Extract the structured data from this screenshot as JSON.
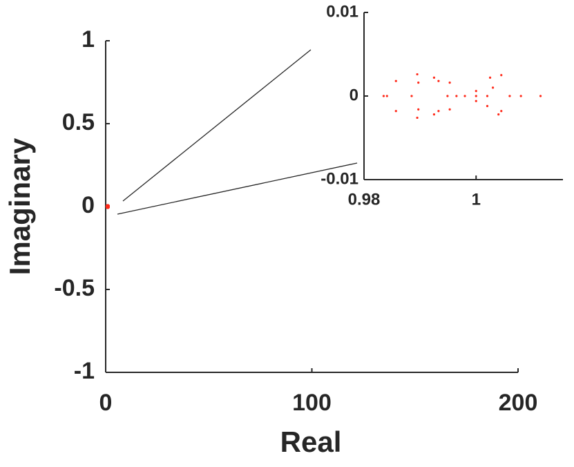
{
  "chart_data": [
    {
      "type": "scatter",
      "x_label": "Real",
      "y_label": "Imaginary",
      "xlim": [
        0,
        200
      ],
      "ylim": [
        -1,
        1
      ],
      "xticks": [
        0,
        100,
        200
      ],
      "yticks": [
        -1,
        -0.5,
        0,
        0.5,
        1
      ],
      "series": [
        {
          "color": "#ff2a1a",
          "x": [
            0.9949,
            0.9933,
            0.9895,
            0.9857,
            0.9841,
            0.9857,
            0.9895,
            0.9933,
            0.9965,
            0.9953,
            0.9925,
            0.9897,
            0.9885,
            0.9897,
            0.9925,
            0.9953,
            1.0025,
            1.0045,
            1.004,
            1.0045,
            1.002,
            1.003,
            0.998,
            1.0,
            1.002,
            1.006,
            1.008,
            1.0115,
            0.9835,
            1.0,
            1.0
          ],
          "y": [
            0,
            0.0018,
            0.0026,
            0.0018,
            0,
            -0.0018,
            -0.0026,
            -0.0018,
            0,
            0.0016,
            0.0022,
            0.0016,
            0,
            -0.0016,
            -0.0022,
            -0.0016,
            0.0022,
            0.0025,
            -0.0022,
            -0.0018,
            -0.0012,
            0.001,
            0,
            0,
            0,
            0,
            0,
            0,
            0,
            0.0006,
            -0.0006
          ]
        }
      ]
    },
    {
      "type": "scatter",
      "xlim": [
        0.98,
        1.0155
      ],
      "ylim": [
        -0.01,
        0.01
      ],
      "xticks": [
        0.98,
        1
      ],
      "yticks": [
        -0.01,
        0,
        0.01
      ],
      "series": [
        {
          "color": "#ff2a1a",
          "x": [
            0.9949,
            0.9933,
            0.9895,
            0.9857,
            0.9841,
            0.9857,
            0.9895,
            0.9933,
            0.9965,
            0.9953,
            0.9925,
            0.9897,
            0.9885,
            0.9897,
            0.9925,
            0.9953,
            1.0025,
            1.0045,
            1.004,
            1.0045,
            1.002,
            1.003,
            0.998,
            1.0,
            1.002,
            1.006,
            1.008,
            1.0115,
            0.9835,
            1.0,
            1.0
          ],
          "y": [
            0,
            0.0018,
            0.0026,
            0.0018,
            0,
            -0.0018,
            -0.0026,
            -0.0018,
            0,
            0.0016,
            0.0022,
            0.0016,
            0,
            -0.0016,
            -0.0022,
            -0.0016,
            0.0022,
            0.0025,
            -0.0022,
            -0.0018,
            -0.0012,
            0.001,
            0,
            0,
            0,
            0,
            0,
            0,
            0,
            0.0006,
            -0.0006
          ]
        }
      ]
    }
  ]
}
